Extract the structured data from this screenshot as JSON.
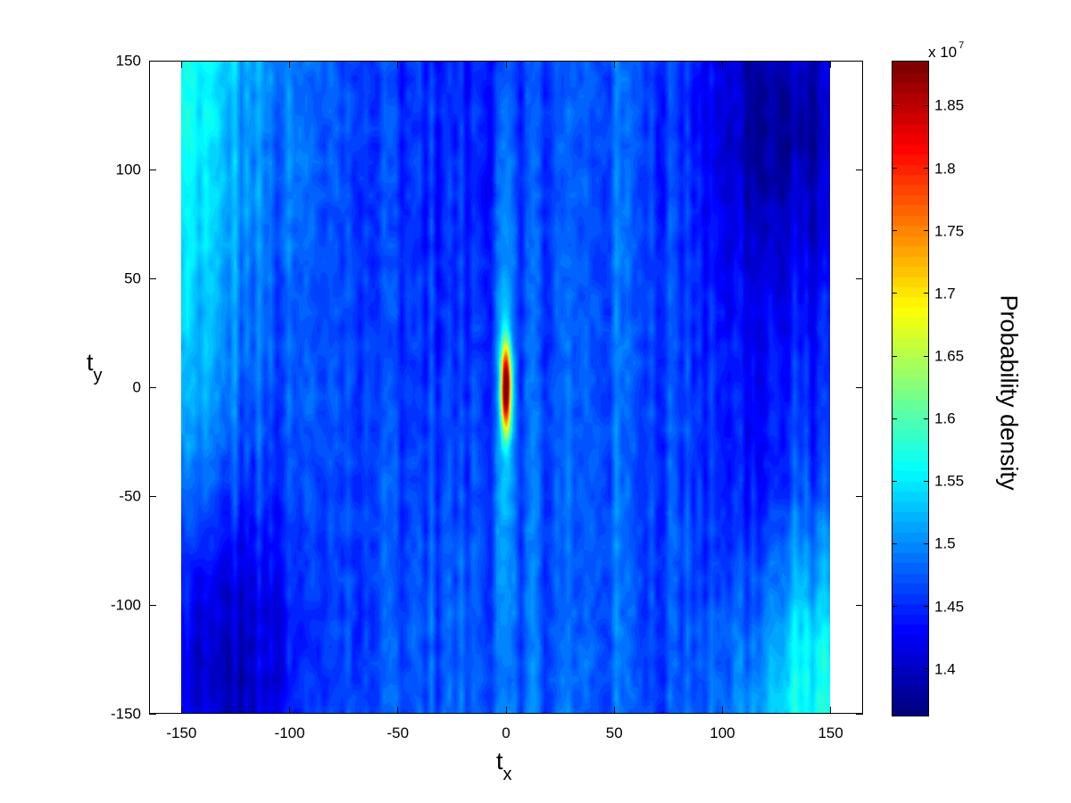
{
  "chart_data": {
    "type": "heatmap",
    "title": "",
    "xlabel": "t",
    "xlabel_sub": "x",
    "ylabel": "t",
    "ylabel_sub": "y",
    "colorbar_label": "Probability density",
    "colorbar_exponent_base": "x 10",
    "colorbar_exponent": "7",
    "colormap": "jet",
    "xlim": [
      -165,
      165
    ],
    "ylim": [
      -150,
      150
    ],
    "data_extent": {
      "x": [
        -150,
        150
      ],
      "y": [
        -150,
        150
      ]
    },
    "clim": [
      1.362,
      1.886
    ],
    "xticks": [
      -150,
      -100,
      -50,
      0,
      50,
      100,
      150
    ],
    "xtick_labels": [
      "-150",
      "-100",
      "-50",
      "0",
      "50",
      "100",
      "150"
    ],
    "yticks": [
      150,
      100,
      50,
      0,
      -50,
      -100,
      -150
    ],
    "ytick_labels": [
      "150",
      "100",
      "50",
      "0",
      "-50",
      "-100",
      "-150"
    ],
    "cbar_ticks": [
      1.85,
      1.8,
      1.75,
      1.7,
      1.65,
      1.6,
      1.55,
      1.5,
      1.45,
      1.4
    ],
    "cbar_tick_labels": [
      "1.85",
      "1.8",
      "1.75",
      "1.7",
      "1.65",
      "1.6",
      "1.55",
      "1.5",
      "1.45",
      "1.4"
    ],
    "grid": false,
    "peak": {
      "x": 0,
      "y": 0,
      "value": 1.886,
      "note": "sharp vertically elongated maximum at origin"
    },
    "background_level": 1.48,
    "features": [
      {
        "description": "bright cyan streak band near t_x=-150 top-left",
        "x": -145,
        "y": 130,
        "value": 1.58
      },
      {
        "description": "bright cyan/green corner bottom-right",
        "x": 145,
        "y": -145,
        "value": 1.6
      },
      {
        "description": "dark blue region bottom-left",
        "x": -135,
        "y": -130,
        "value": 1.39
      },
      {
        "description": "dark blue region top-right",
        "x": 130,
        "y": 130,
        "value": 1.39
      },
      {
        "description": "dark vertical band near t_x=-120",
        "x": -120,
        "y": 20,
        "value": 1.44
      },
      {
        "description": "dark vertical band near t_x=-20",
        "x": -20,
        "y": 100,
        "value": 1.44
      },
      {
        "description": "dark vertical band near t_x=120",
        "x": 120,
        "y": -30,
        "value": 1.43
      },
      {
        "description": "vertical cyan ridge along t_x=0",
        "x": 0,
        "y": 0,
        "value": 1.55
      }
    ]
  }
}
